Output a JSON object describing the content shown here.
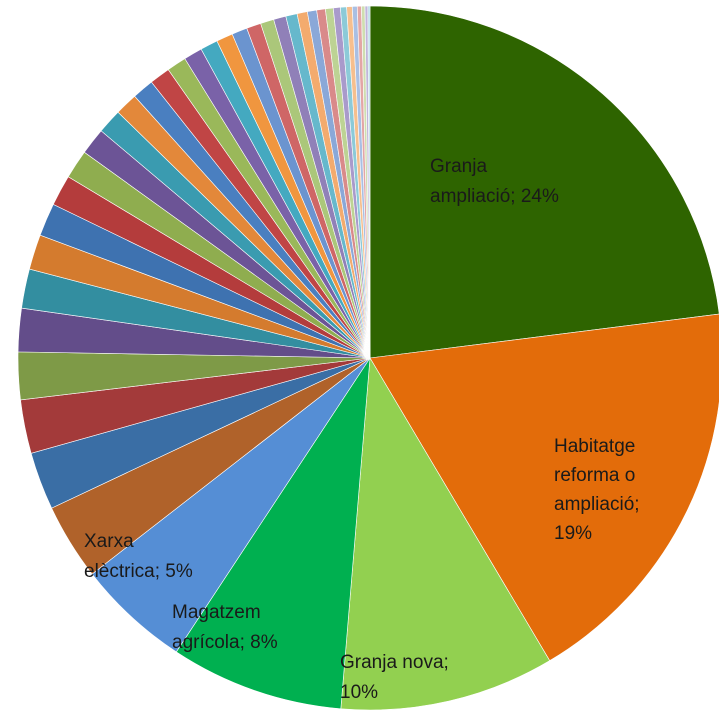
{
  "chart_data": {
    "type": "pie",
    "title": "",
    "legend": "none",
    "start_angle_deg": 0,
    "direction": "clockwise",
    "slices": [
      {
        "label": "Granja ampliació; 24%",
        "value": 24.3,
        "color": "#2e6400",
        "label_lines": [
          "Granja",
          "ampliació; 24%"
        ]
      },
      {
        "label": "Habitatge reforma o ampliació; 19%",
        "value": 19.5,
        "color": "#e36c0a",
        "label_lines": [
          "Habitatge",
          "reforma o",
          "ampliació;",
          "19%"
        ]
      },
      {
        "label": "Granja nova; 10%",
        "value": 10.4,
        "color": "#92d050",
        "label_lines": [
          "Granja nova;",
          "10%"
        ]
      },
      {
        "label": "Magatzem agrícola; 8%",
        "value": 8.4,
        "color": "#00b050",
        "label_lines": [
          "Magatzem",
          "agrícola; 8%"
        ]
      },
      {
        "label": "Xarxa elèctrica; 5%",
        "value": 5.5,
        "color": "#558ed5",
        "label_lines": [
          "Xarxa",
          "elèctrica; 5%"
        ]
      },
      {
        "label": "",
        "value": 3.7,
        "color": "#b0622a"
      },
      {
        "label": "",
        "value": 2.8,
        "color": "#3a6ea5"
      },
      {
        "label": "",
        "value": 2.6,
        "color": "#a33a3a"
      },
      {
        "label": "",
        "value": 2.3,
        "color": "#7e9a47"
      },
      {
        "label": "",
        "value": 2.1,
        "color": "#634d8a"
      },
      {
        "label": "",
        "value": 1.9,
        "color": "#338ea0"
      },
      {
        "label": "",
        "value": 1.7,
        "color": "#d47b2e"
      },
      {
        "label": "",
        "value": 1.6,
        "color": "#3e72b0"
      },
      {
        "label": "",
        "value": 1.5,
        "color": "#b43c3c"
      },
      {
        "label": "",
        "value": 1.4,
        "color": "#8fad4f"
      },
      {
        "label": "",
        "value": 1.3,
        "color": "#6c5496"
      },
      {
        "label": "",
        "value": 1.2,
        "color": "#3a9bb0"
      },
      {
        "label": "",
        "value": 1.1,
        "color": "#e3883a"
      },
      {
        "label": "",
        "value": 1.05,
        "color": "#4a7fc0"
      },
      {
        "label": "",
        "value": 1.0,
        "color": "#c04545"
      },
      {
        "label": "",
        "value": 0.95,
        "color": "#9ab85a"
      },
      {
        "label": "",
        "value": 0.9,
        "color": "#7a62a8"
      },
      {
        "label": "",
        "value": 0.85,
        "color": "#44a9c0"
      },
      {
        "label": "",
        "value": 0.8,
        "color": "#f0963f"
      },
      {
        "label": "",
        "value": 0.75,
        "color": "#6b94cf"
      },
      {
        "label": "",
        "value": 0.7,
        "color": "#cf6666"
      },
      {
        "label": "",
        "value": 0.65,
        "color": "#abc77a"
      },
      {
        "label": "",
        "value": 0.6,
        "color": "#9080b8"
      },
      {
        "label": "",
        "value": 0.55,
        "color": "#66b8cc"
      },
      {
        "label": "",
        "value": 0.5,
        "color": "#f3ab6e"
      },
      {
        "label": "",
        "value": 0.45,
        "color": "#8aa8d8"
      },
      {
        "label": "",
        "value": 0.42,
        "color": "#d98a8a"
      },
      {
        "label": "",
        "value": 0.38,
        "color": "#bdd394"
      },
      {
        "label": "",
        "value": 0.34,
        "color": "#a99acb"
      },
      {
        "label": "",
        "value": 0.3,
        "color": "#8ccad8"
      },
      {
        "label": "",
        "value": 0.27,
        "color": "#f6bf8e"
      },
      {
        "label": "",
        "value": 0.24,
        "color": "#a9bfe3"
      },
      {
        "label": "",
        "value": 0.2,
        "color": "#e3a6a6"
      },
      {
        "label": "",
        "value": 0.17,
        "color": "#cfdeb0"
      },
      {
        "label": "",
        "value": 0.14,
        "color": "#c0b5da"
      },
      {
        "label": "",
        "value": 0.1,
        "color": "#b2dbe5"
      }
    ]
  }
}
